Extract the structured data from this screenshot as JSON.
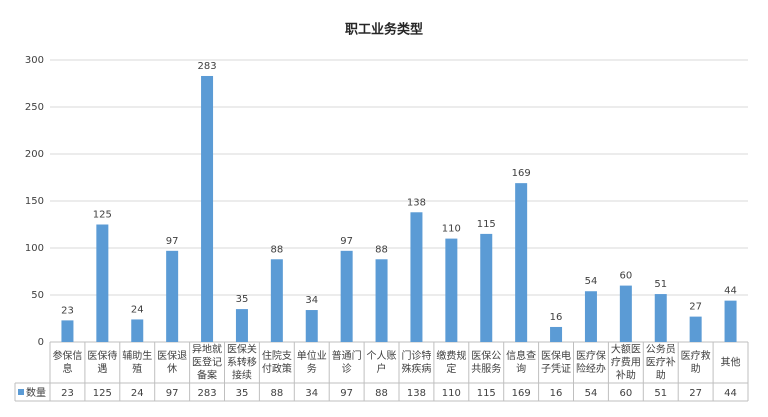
{
  "chart_data": {
    "type": "bar",
    "title": "职工业务类型",
    "categories": [
      "参保信息",
      "医保待遇",
      "辅助生殖",
      "医保退休",
      "异地就医登记备案",
      "医保关系转移接续",
      "住院支付政策",
      "单位业务",
      "普通门诊",
      "个人账户",
      "门诊特殊疾病",
      "缴费规定",
      "医保公共服务",
      "信息查询",
      "医保电子凭证",
      "医疗保险经办",
      "大额医疗费用补助",
      "公务员医疗补助",
      "医疗救助",
      "其他"
    ],
    "series": [
      {
        "name": "数量",
        "color": "#5b9bd5",
        "values": [
          23,
          125,
          24,
          97,
          283,
          35,
          88,
          34,
          97,
          88,
          138,
          110,
          115,
          169,
          16,
          54,
          60,
          51,
          27,
          44
        ]
      }
    ],
    "ylim": [
      0,
      300
    ],
    "yticks": [
      0,
      50,
      100,
      150,
      200,
      250,
      300
    ],
    "grid": true
  }
}
